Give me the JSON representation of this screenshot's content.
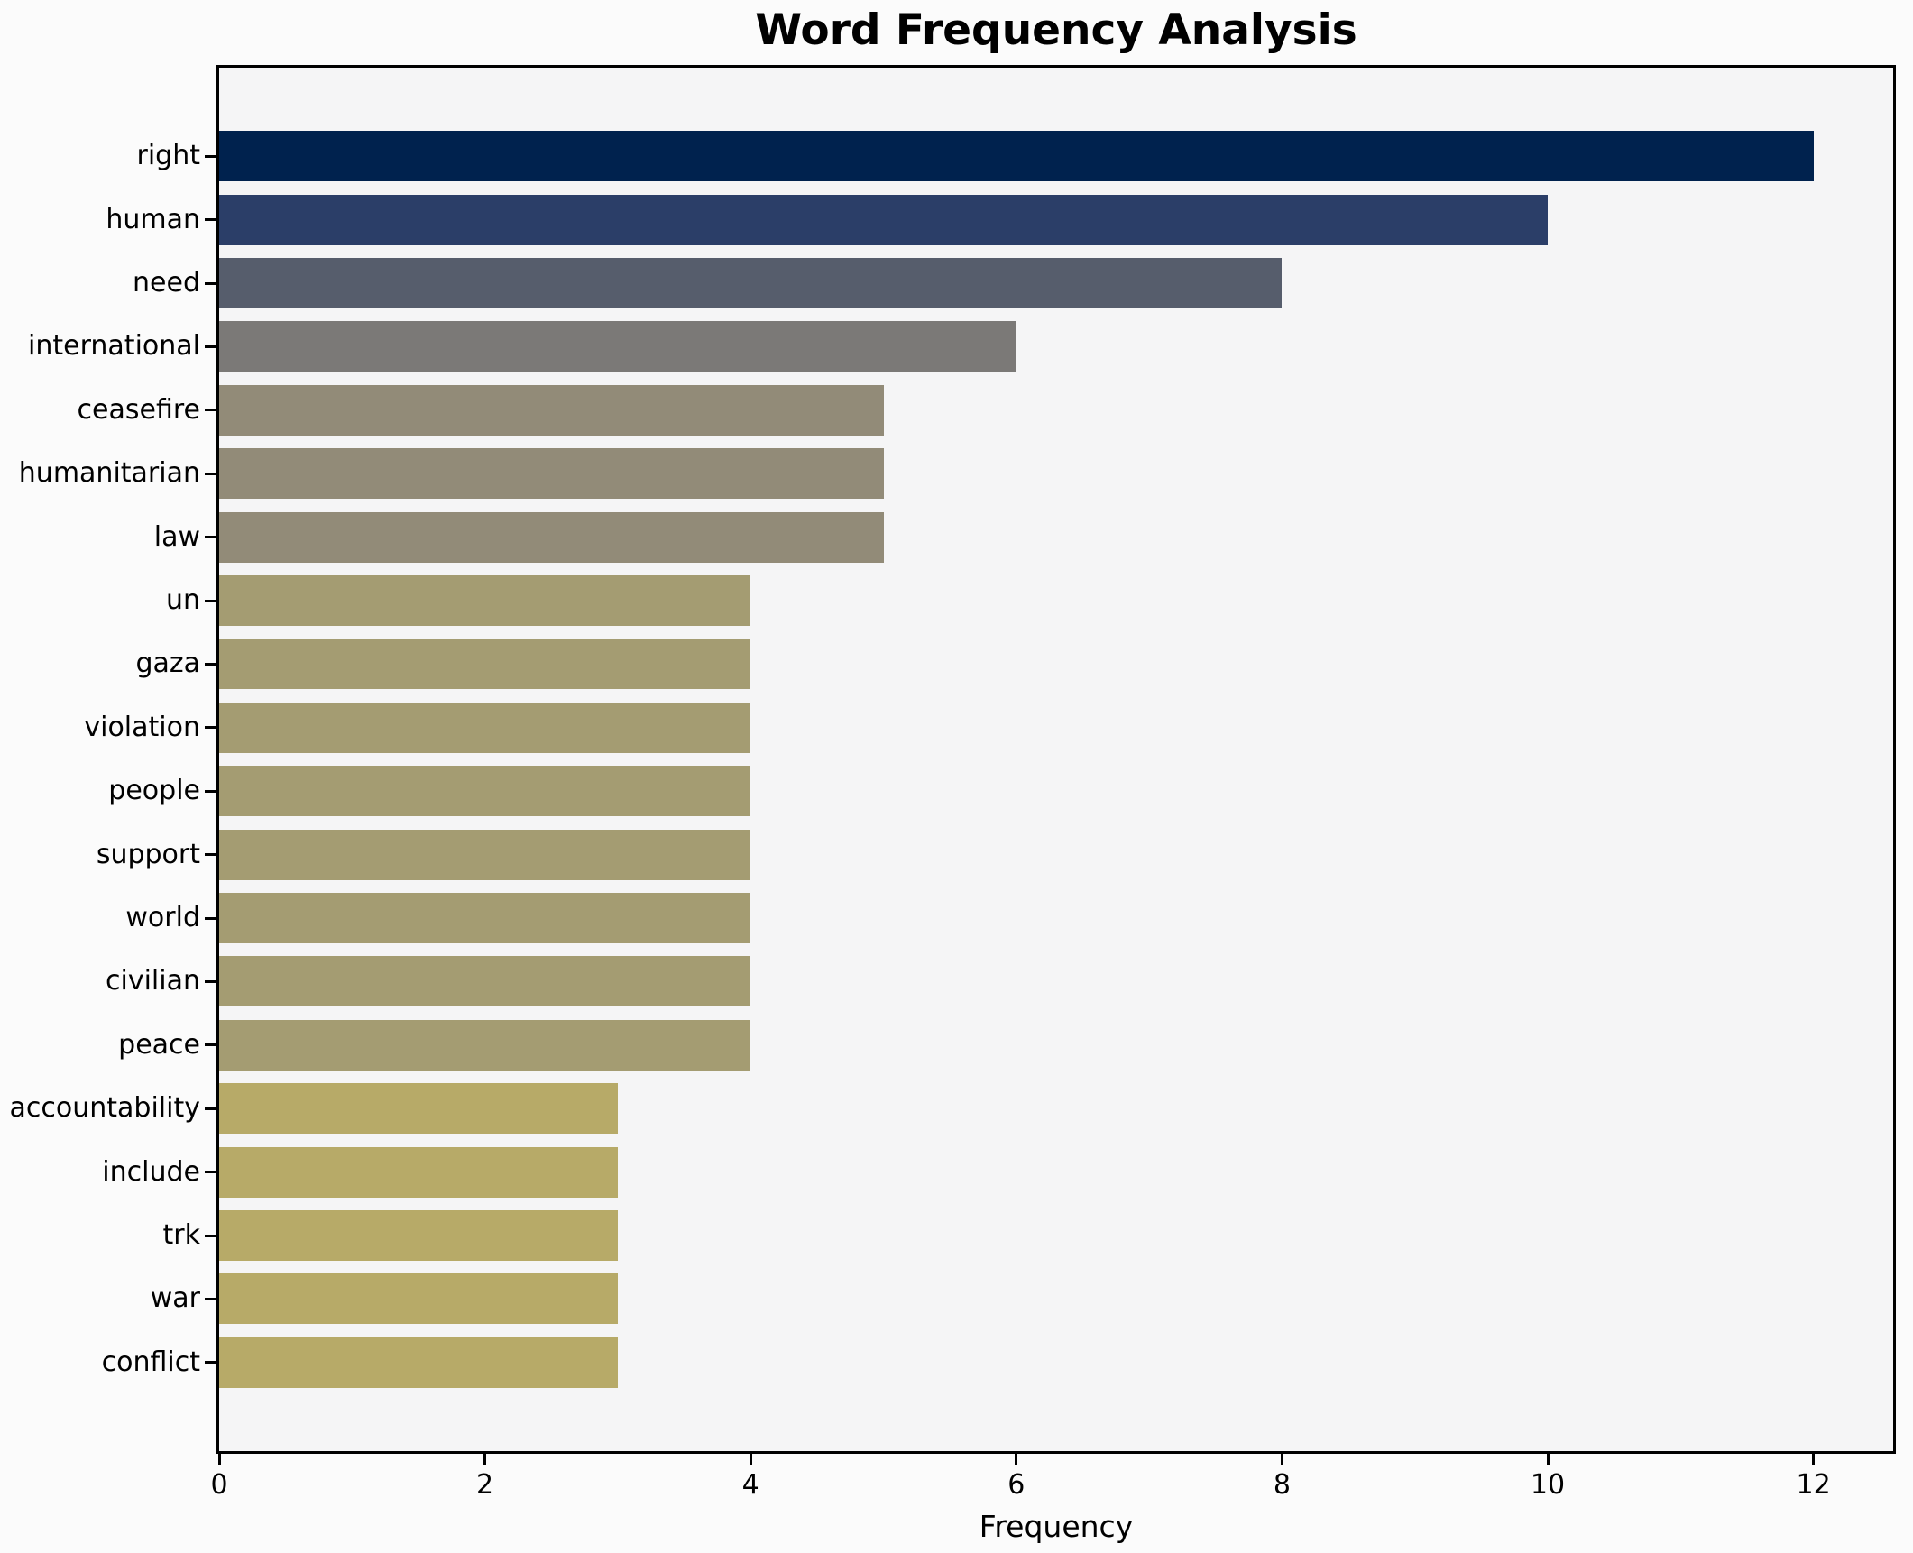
{
  "figure": {
    "background_color": "#fbfbfb",
    "plot_background_color": "#f5f5f6",
    "spine_color": "#000000",
    "tick_color": "#000000",
    "text_color": "#000000"
  },
  "chart_data": {
    "type": "bar",
    "orientation": "horizontal",
    "title": "Word Frequency Analysis",
    "xlabel": "Frequency",
    "ylabel": "",
    "grid": false,
    "legend_position": "none",
    "xlim": [
      0,
      12.6
    ],
    "x_ticks": [
      0,
      2,
      4,
      6,
      8,
      10,
      12
    ],
    "categories": [
      "right",
      "human",
      "need",
      "international",
      "ceasefire",
      "humanitarian",
      "law",
      "un",
      "gaza",
      "violation",
      "people",
      "support",
      "world",
      "civilian",
      "peace",
      "accountability",
      "include",
      "trk",
      "war",
      "conflict"
    ],
    "values": [
      12,
      10,
      8,
      6,
      5,
      5,
      5,
      4,
      4,
      4,
      4,
      4,
      4,
      4,
      4,
      3,
      3,
      3,
      3,
      3
    ],
    "bar_colors": [
      "#00224e",
      "#2b3e68",
      "#565d6c",
      "#7b7977",
      "#928b78",
      "#928b78",
      "#928b78",
      "#a49c72",
      "#a49c72",
      "#a49c72",
      "#a49c72",
      "#a49c72",
      "#a49c72",
      "#a49c72",
      "#a49c72",
      "#b7aa68",
      "#b7aa68",
      "#b7aa68",
      "#b7aa68",
      "#b7aa68"
    ]
  }
}
